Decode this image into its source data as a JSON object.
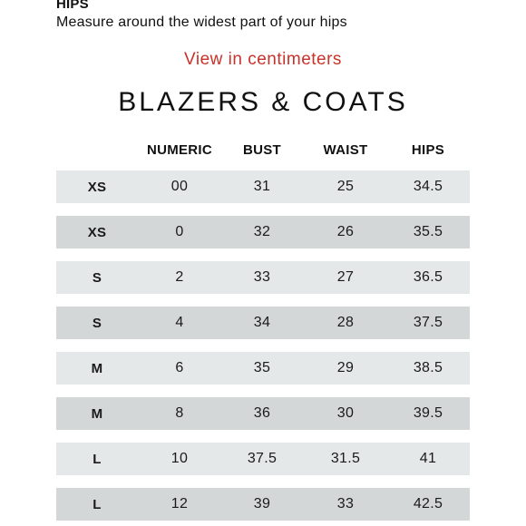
{
  "hips": {
    "heading": "HIPS",
    "description": "Measure around the widest part of your hips"
  },
  "unit_toggle": {
    "label": "View in centimeters"
  },
  "table": {
    "title": "BLAZERS & COATS",
    "headers": [
      "",
      "NUMERIC",
      "BUST",
      "WAIST",
      "HIPS"
    ],
    "rows": [
      [
        "XS",
        "00",
        "31",
        "25",
        "34.5"
      ],
      [
        "XS",
        "0",
        "32",
        "26",
        "35.5"
      ],
      [
        "S",
        "2",
        "33",
        "27",
        "36.5"
      ],
      [
        "S",
        "4",
        "34",
        "28",
        "37.5"
      ],
      [
        "M",
        "6",
        "35",
        "29",
        "38.5"
      ],
      [
        "M",
        "8",
        "36",
        "30",
        "39.5"
      ],
      [
        "L",
        "10",
        "37.5",
        "31.5",
        "41"
      ],
      [
        "L",
        "12",
        "39",
        "33",
        "42.5"
      ]
    ]
  },
  "colors": {
    "link": "#c8322a",
    "row_light": "#e5e8e8",
    "row_dark": "#d4d7d8"
  }
}
